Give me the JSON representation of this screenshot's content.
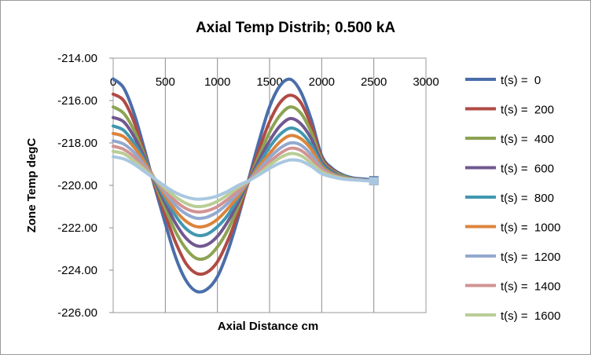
{
  "chart_data": {
    "type": "line",
    "title": "Axial Temp Distrib; 0.500 kA",
    "xlabel": "Axial Distance  cm",
    "ylabel": "Zone Temp degC",
    "xlim": [
      0,
      3000
    ],
    "ylim": [
      -226,
      -214
    ],
    "x_ticks": [
      "0",
      "500",
      "1000",
      "1500",
      "2000",
      "2500",
      "3000"
    ],
    "x_tick_values": [
      0,
      500,
      1000,
      1500,
      2000,
      2500,
      3000
    ],
    "y_ticks": [
      "-214.00",
      "-216.00",
      "-218.00",
      "-220.00",
      "-222.00",
      "-224.00",
      "-226.00"
    ],
    "y_tick_values": [
      -214,
      -216,
      -218,
      -220,
      -222,
      -224,
      -226
    ],
    "grid": "vertical",
    "legend_position": "right",
    "x": [
      0,
      100,
      200,
      300,
      400,
      500,
      600,
      700,
      800,
      900,
      1000,
      1100,
      1200,
      1300,
      1400,
      1500,
      1600,
      1700,
      1800,
      1900,
      2000,
      2100,
      2200,
      2300,
      2400,
      2500
    ],
    "series": [
      {
        "name": "t(s) =  0",
        "color": "#4a6ea9",
        "values": [
          -214.98,
          -215.4,
          -216.6,
          -218.3,
          -220.1,
          -221.8,
          -223.4,
          -224.5,
          -225.0,
          -224.9,
          -224.3,
          -223.1,
          -221.5,
          -219.7,
          -217.9,
          -216.3,
          -215.3,
          -215.0,
          -215.6,
          -216.9,
          -218.6,
          -219.2,
          -219.5,
          -219.65,
          -219.7,
          -219.75
        ]
      },
      {
        "name": "t(s) =  200",
        "color": "#b04a45",
        "values": [
          -215.7,
          -216.0,
          -217.0,
          -218.5,
          -220.0,
          -221.4,
          -222.7,
          -223.7,
          -224.15,
          -224.1,
          -223.6,
          -222.6,
          -221.3,
          -219.8,
          -218.3,
          -217.0,
          -216.1,
          -215.75,
          -216.1,
          -217.2,
          -218.7,
          -219.25,
          -219.55,
          -219.7,
          -219.75,
          -219.8
        ]
      },
      {
        "name": "t(s) =  400",
        "color": "#8ca352",
        "values": [
          -216.3,
          -216.6,
          -217.4,
          -218.6,
          -219.9,
          -221.1,
          -222.2,
          -223.0,
          -223.45,
          -223.4,
          -222.9,
          -222.1,
          -221.0,
          -219.8,
          -218.6,
          -217.5,
          -216.7,
          -216.3,
          -216.6,
          -217.5,
          -218.8,
          -219.3,
          -219.55,
          -219.7,
          -219.75,
          -219.8
        ]
      },
      {
        "name": "t(s) =  600",
        "color": "#71588f",
        "values": [
          -216.8,
          -217.0,
          -217.7,
          -218.7,
          -219.8,
          -220.85,
          -221.8,
          -222.5,
          -222.85,
          -222.8,
          -222.4,
          -221.7,
          -220.8,
          -219.8,
          -218.8,
          -217.9,
          -217.2,
          -216.85,
          -217.1,
          -217.8,
          -218.9,
          -219.35,
          -219.6,
          -219.7,
          -219.75,
          -219.8
        ]
      },
      {
        "name": "t(s) =  800",
        "color": "#4198af",
        "values": [
          -217.2,
          -217.4,
          -218.0,
          -218.8,
          -219.75,
          -220.65,
          -221.45,
          -222.05,
          -222.35,
          -222.3,
          -221.95,
          -221.4,
          -220.6,
          -219.8,
          -219.0,
          -218.2,
          -217.6,
          -217.3,
          -217.5,
          -218.1,
          -219.0,
          -219.4,
          -219.6,
          -219.7,
          -219.75,
          -219.8
        ]
      },
      {
        "name": "t(s) =  1000",
        "color": "#db843d",
        "values": [
          -217.55,
          -217.7,
          -218.2,
          -218.9,
          -219.7,
          -220.5,
          -221.2,
          -221.7,
          -221.95,
          -221.9,
          -221.6,
          -221.1,
          -220.5,
          -219.8,
          -219.1,
          -218.5,
          -217.95,
          -217.65,
          -217.8,
          -218.3,
          -219.1,
          -219.45,
          -219.62,
          -219.7,
          -219.75,
          -219.8
        ]
      },
      {
        "name": "t(s) =  1200",
        "color": "#93a9cf",
        "values": [
          -217.9,
          -218.05,
          -218.45,
          -219.05,
          -219.7,
          -220.35,
          -220.95,
          -221.35,
          -221.55,
          -221.5,
          -221.25,
          -220.85,
          -220.35,
          -219.8,
          -219.25,
          -218.7,
          -218.25,
          -218.0,
          -218.1,
          -218.55,
          -219.2,
          -219.5,
          -219.65,
          -219.72,
          -219.76,
          -219.8
        ]
      },
      {
        "name": "t(s) =  1400",
        "color": "#d19392",
        "values": [
          -218.15,
          -218.3,
          -218.65,
          -219.15,
          -219.7,
          -220.25,
          -220.75,
          -221.1,
          -221.25,
          -221.2,
          -221.0,
          -220.65,
          -220.25,
          -219.8,
          -219.35,
          -218.9,
          -218.5,
          -218.25,
          -218.35,
          -218.75,
          -219.25,
          -219.52,
          -219.66,
          -219.72,
          -219.76,
          -219.8
        ]
      },
      {
        "name": "t(s) =  1600",
        "color": "#b9cd96",
        "values": [
          -218.4,
          -218.5,
          -218.85,
          -219.25,
          -219.7,
          -220.15,
          -220.55,
          -220.85,
          -221.0,
          -220.95,
          -220.75,
          -220.45,
          -220.1,
          -219.8,
          -219.45,
          -219.05,
          -218.7,
          -218.5,
          -218.6,
          -218.95,
          -219.35,
          -219.55,
          -219.67,
          -219.73,
          -219.77,
          -219.8
        ]
      },
      {
        "name": "",
        "color": "#a9c7e0",
        "values": [
          -218.65,
          -218.75,
          -219.0,
          -219.35,
          -219.7,
          -220.05,
          -220.35,
          -220.55,
          -220.65,
          -220.62,
          -220.5,
          -220.28,
          -220.0,
          -219.78,
          -219.5,
          -219.2,
          -218.95,
          -218.8,
          -218.85,
          -219.1,
          -219.45,
          -219.6,
          -219.7,
          -219.74,
          -219.77,
          -219.8
        ]
      }
    ]
  }
}
